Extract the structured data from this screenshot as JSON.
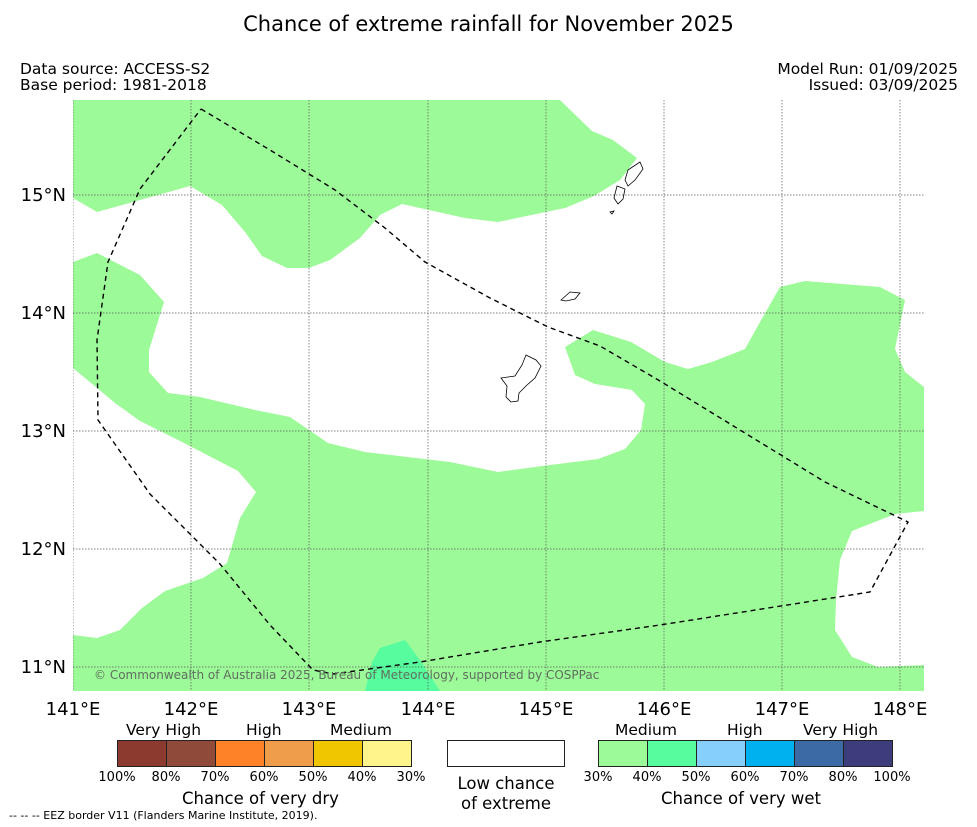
{
  "header": {
    "title": "Chance of extreme rainfall for November 2025",
    "data_source": "Data source: ACCESS-S2",
    "base_period": "Base period: 1981-2018",
    "model_run": "Model Run: 01/09/2025",
    "issued": "Issued: 03/09/2025"
  },
  "map": {
    "lon_range": [
      141,
      148.2
    ],
    "lat_range": [
      10.8,
      15.8
    ],
    "lat_labels": [
      "15°N",
      "14°N",
      "13°N",
      "12°N",
      "11°N"
    ],
    "lon_labels": [
      "141°E",
      "142°E",
      "143°E",
      "144°E",
      "145°E",
      "146°E",
      "147°E",
      "148°E"
    ],
    "copyright": "© Commonwealth of Australia 2025, Bureau of Meteorology, supported by COSPPac",
    "colors": {
      "medium_wet": "#9dfa98",
      "high_wet": "#57fc9e",
      "low": "#ffffff"
    }
  },
  "legend": {
    "dry": {
      "title": "Chance of very dry",
      "categories": [
        "Very High",
        "High",
        "Medium"
      ],
      "ticks": [
        "100%",
        "80%",
        "70%",
        "60%",
        "50%",
        "40%",
        "30%"
      ],
      "colors": [
        "#8c3a2f",
        "#8f4a3a",
        "#fd8228",
        "#ef9d4b",
        "#f0c600",
        "#fdf48c"
      ]
    },
    "low": {
      "line1": "Low chance",
      "line2": "of extreme"
    },
    "wet": {
      "title": "Chance of very wet",
      "categories": [
        "Medium",
        "High",
        "Very High"
      ],
      "ticks": [
        "30%",
        "40%",
        "50%",
        "60%",
        "70%",
        "80%",
        "100%"
      ],
      "colors": [
        "#9dfa98",
        "#57fc9e",
        "#86cefb",
        "#00b1ef",
        "#3b6aa5",
        "#3d3d7c"
      ]
    }
  },
  "footer": "--  --  -- EEZ border V11 (Flanders Marine Institute, 2019)."
}
